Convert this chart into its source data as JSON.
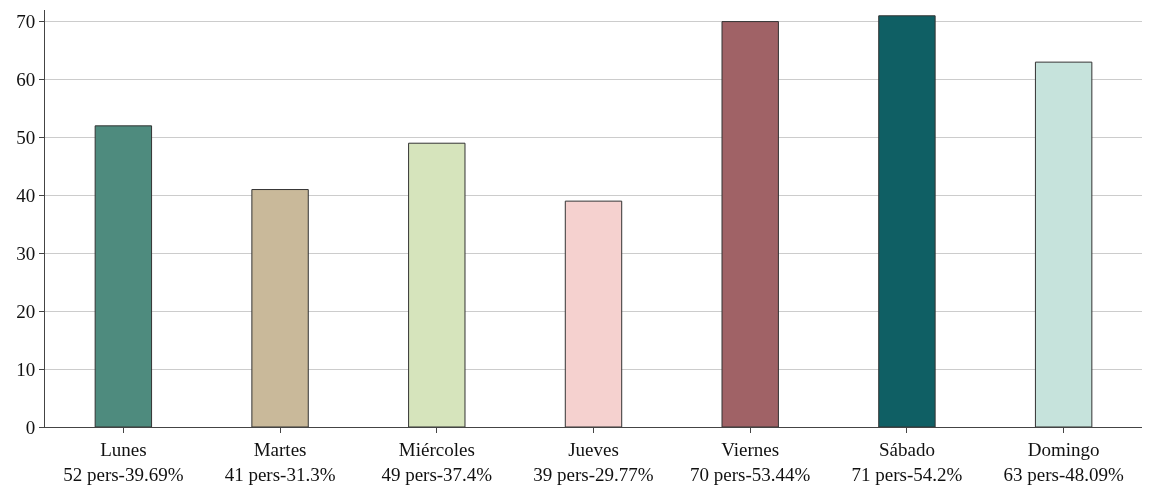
{
  "chart_data": {
    "type": "bar",
    "categories": [
      "Lunes\n52 pers-39.69%",
      "Martes\n41 pers-31.3%",
      "Miércoles\n49 pers-37.4%",
      "Jueves\n39 pers-29.77%",
      "Viernes\n70 pers-53.44%",
      "Sábado\n71 pers-54.2%",
      "Domingo\n63 pers-48.09%"
    ],
    "values": [
      52,
      41,
      49,
      39,
      70,
      71,
      63
    ],
    "colors": [
      "#4e8b7e",
      "#c9b99a",
      "#d6e4bc",
      "#f5d1cf",
      "#a06266",
      "#0f5f64",
      "#c6e3dc"
    ],
    "ylim": [
      0,
      72
    ],
    "yticks": [
      0,
      10,
      20,
      30,
      40,
      50,
      60,
      70
    ],
    "grid": "y"
  }
}
